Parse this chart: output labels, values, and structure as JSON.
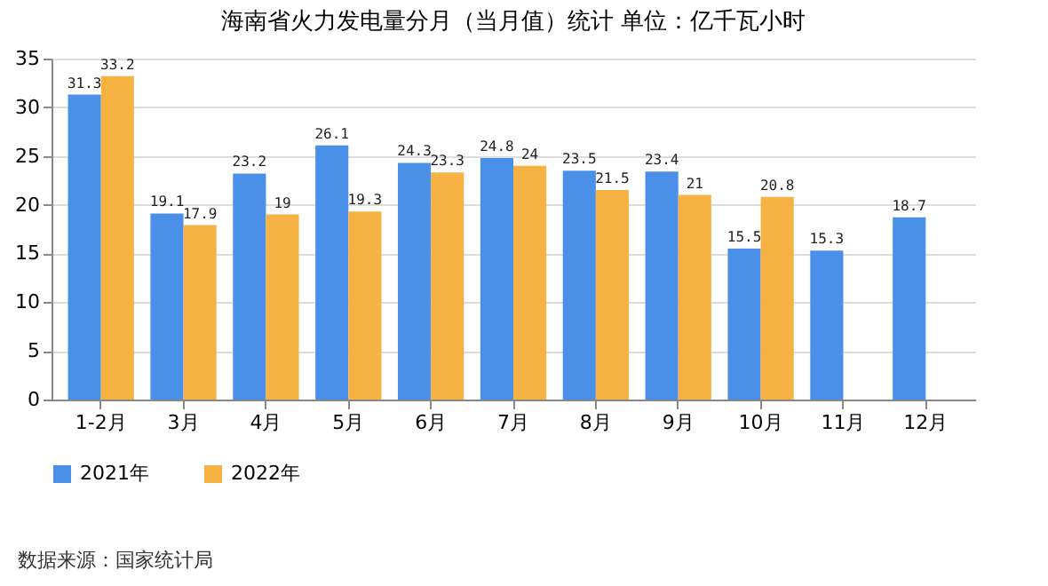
{
  "chart_data": {
    "type": "bar",
    "title": "海南省火力发电量分月（当月值）统计  单位：亿千瓦小时",
    "categories": [
      "1-2月",
      "3月",
      "4月",
      "5月",
      "6月",
      "7月",
      "8月",
      "9月",
      "10月",
      "11月",
      "12月"
    ],
    "series": [
      {
        "name": "2021年",
        "color": "#4a8fe8",
        "values": [
          31.3,
          19.1,
          23.2,
          26.1,
          24.3,
          24.8,
          23.5,
          23.4,
          15.5,
          15.3,
          18.7
        ]
      },
      {
        "name": "2022年",
        "color": "#f7b244",
        "values": [
          33.2,
          17.9,
          19,
          19.3,
          23.3,
          24,
          21.5,
          21,
          20.8,
          null,
          null
        ]
      }
    ],
    "ylim": [
      0,
      35
    ],
    "yticks": [
      0,
      5,
      10,
      15,
      20,
      25,
      30,
      35
    ],
    "grid": "y",
    "legend": "bottom",
    "data_labels": true,
    "annotations": [
      "数据来源：国家统计局"
    ]
  }
}
